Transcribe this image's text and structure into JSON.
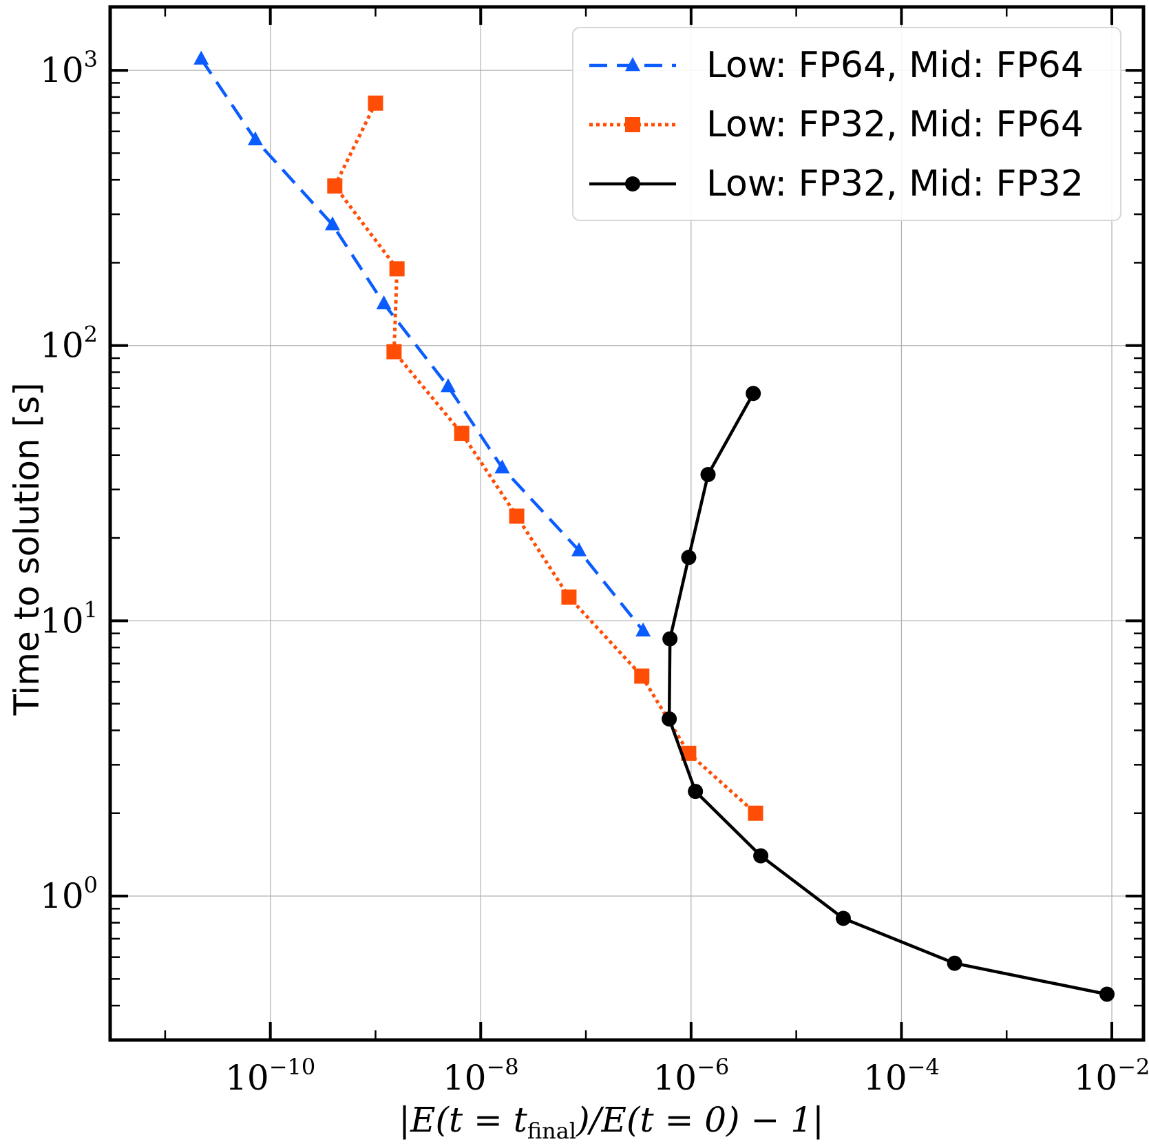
{
  "chart_data": {
    "type": "line",
    "xscale": "log",
    "yscale": "log",
    "xlim": [
      3e-12,
      0.02
    ],
    "ylim": [
      0.3,
      1700
    ],
    "grid": true,
    "ylabel": "Time to solution [s]",
    "xlabel": {
      "pre": "|E(t = t",
      "sub": "final",
      "post": ")/E(t = 0) − 1|"
    },
    "xticks": [
      {
        "value": 1e-10,
        "base": "10",
        "exp": "−10"
      },
      {
        "value": 1e-08,
        "base": "10",
        "exp": "−8"
      },
      {
        "value": 1e-06,
        "base": "10",
        "exp": "−6"
      },
      {
        "value": 0.0001,
        "base": "10",
        "exp": "−4"
      },
      {
        "value": 0.01,
        "base": "10",
        "exp": "−2"
      }
    ],
    "yticks": [
      {
        "value": 1,
        "base": "10",
        "exp": "0"
      },
      {
        "value": 10,
        "base": "10",
        "exp": "1"
      },
      {
        "value": 100,
        "base": "10",
        "exp": "2"
      },
      {
        "value": 1000,
        "base": "10",
        "exp": "3"
      }
    ],
    "legend_position": "top-right",
    "series": [
      {
        "name": "Low: FP64, Mid: FP64",
        "color": "#0a5cff",
        "line_style": "dashed",
        "marker": "triangle",
        "x": [
          2.2e-11,
          7.2e-11,
          3.9e-10,
          1.2e-09,
          4.9e-09,
          1.6e-08,
          8.6e-08,
          3.5e-07
        ],
        "y": [
          1100,
          560,
          275,
          142,
          71,
          36,
          18,
          9.2
        ]
      },
      {
        "name": "Low: FP32, Mid: FP64",
        "color": "#ff4d05",
        "line_style": "dotted",
        "marker": "square",
        "x": [
          1e-09,
          4.1e-10,
          1.6e-09,
          1.5e-09,
          6.6e-09,
          2.2e-08,
          6.9e-08,
          3.4e-07,
          9.5e-07,
          4.1e-06
        ],
        "y": [
          760,
          380,
          190,
          95,
          48,
          24,
          12.2,
          6.3,
          3.3,
          2.0
        ]
      },
      {
        "name": "Low: FP32, Mid: FP32",
        "color": "#000000",
        "line_style": "solid",
        "marker": "circle",
        "x": [
          3.9e-06,
          1.45e-06,
          9.5e-07,
          6.3e-07,
          6.2e-07,
          1.1e-06,
          4.6e-06,
          2.8e-05,
          0.00032,
          0.009
        ],
        "y": [
          67,
          34,
          17,
          8.6,
          4.4,
          2.4,
          1.4,
          0.83,
          0.57,
          0.44
        ]
      }
    ]
  }
}
